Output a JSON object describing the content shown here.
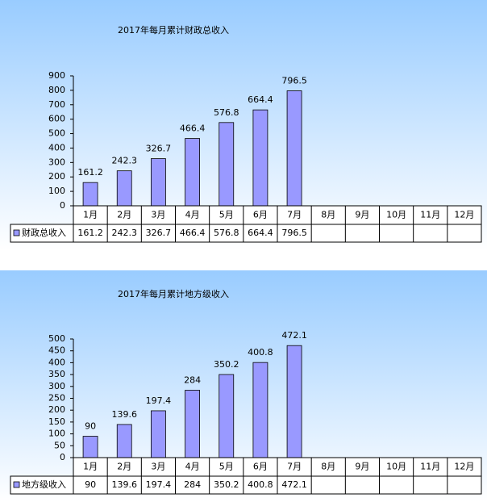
{
  "chart_data": [
    {
      "type": "bar",
      "title": "2017年每月累计财政总收入",
      "categories": [
        "1月",
        "2月",
        "3月",
        "4月",
        "5月",
        "6月",
        "7月",
        "8月",
        "9月",
        "10月",
        "11月",
        "12月"
      ],
      "series": [
        {
          "name": "财政总收入",
          "color": "#9999ff",
          "values": [
            161.2,
            242.3,
            326.7,
            466.4,
            576.8,
            664.4,
            796.5,
            null,
            null,
            null,
            null,
            null
          ]
        }
      ],
      "ylim": [
        0,
        900
      ],
      "yticks": [
        0,
        100,
        200,
        300,
        400,
        500,
        600,
        700,
        800,
        900
      ],
      "grid": false
    },
    {
      "type": "bar",
      "title": "2017年每月累计地方级收入",
      "categories": [
        "1月",
        "2月",
        "3月",
        "4月",
        "5月",
        "6月",
        "7月",
        "8月",
        "9月",
        "10月",
        "11月",
        "12月"
      ],
      "series": [
        {
          "name": "地方级收入",
          "color": "#9999ff",
          "values": [
            90,
            139.6,
            197.4,
            284,
            350.2,
            400.8,
            472.1,
            null,
            null,
            null,
            null,
            null
          ]
        }
      ],
      "ylim": [
        0,
        500
      ],
      "yticks": [
        0,
        50,
        100,
        150,
        200,
        250,
        300,
        350,
        400,
        450,
        500
      ],
      "grid": false
    }
  ]
}
